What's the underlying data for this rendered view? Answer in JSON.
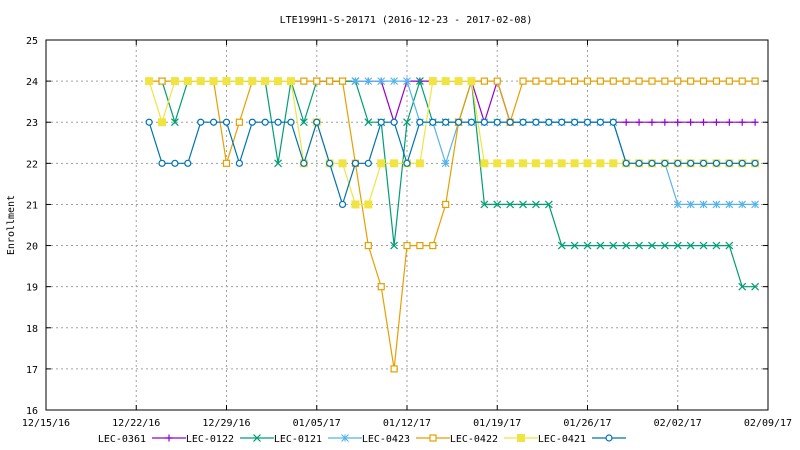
{
  "chart_data": {
    "type": "line",
    "title": "LTE199H1-S-20171 (2016-12-23 - 2017-02-08)",
    "ylabel": "Enrollment",
    "xlabel": "",
    "ylim": [
      16,
      25
    ],
    "yticks": [
      "16",
      "17",
      "18",
      "19",
      "20",
      "21",
      "22",
      "23",
      "24",
      "25"
    ],
    "xlim": [
      "2016-12-15",
      "2017-02-09"
    ],
    "xticks": [
      {
        "date": "2016-12-15",
        "label": "12/15/16"
      },
      {
        "date": "2016-12-22",
        "label": "12/22/16"
      },
      {
        "date": "2016-12-29",
        "label": "12/29/16"
      },
      {
        "date": "2017-01-05",
        "label": "01/05/17"
      },
      {
        "date": "2017-01-12",
        "label": "01/12/17"
      },
      {
        "date": "2017-01-19",
        "label": "01/19/17"
      },
      {
        "date": "2017-01-26",
        "label": "01/26/17"
      },
      {
        "date": "2017-02-02",
        "label": "02/02/17"
      },
      {
        "date": "2017-02-09",
        "label": "02/09/17"
      }
    ],
    "grid": "dashed",
    "legend_position": "bottom",
    "series": [
      {
        "name": "LEC-0361",
        "color": "#9400d3",
        "marker": "plus",
        "points": [
          [
            "2017-01-05",
            24
          ],
          [
            "2017-01-06",
            24
          ],
          [
            "2017-01-07",
            24
          ],
          [
            "2017-01-08",
            24
          ],
          [
            "2017-01-09",
            24
          ],
          [
            "2017-01-10",
            24
          ],
          [
            "2017-01-11",
            23
          ],
          [
            "2017-01-12",
            24
          ],
          [
            "2017-01-13",
            24
          ],
          [
            "2017-01-14",
            24
          ],
          [
            "2017-01-15",
            24
          ],
          [
            "2017-01-16",
            24
          ],
          [
            "2017-01-17",
            24
          ],
          [
            "2017-01-18",
            23
          ],
          [
            "2017-01-19",
            24
          ],
          [
            "2017-01-20",
            23
          ],
          [
            "2017-01-21",
            23
          ],
          [
            "2017-01-22",
            23
          ],
          [
            "2017-01-23",
            23
          ],
          [
            "2017-01-24",
            23
          ],
          [
            "2017-01-25",
            23
          ],
          [
            "2017-01-26",
            23
          ],
          [
            "2017-01-27",
            23
          ],
          [
            "2017-01-28",
            23
          ],
          [
            "2017-01-29",
            23
          ],
          [
            "2017-01-30",
            23
          ],
          [
            "2017-01-31",
            23
          ],
          [
            "2017-02-01",
            23
          ],
          [
            "2017-02-02",
            23
          ],
          [
            "2017-02-03",
            23
          ],
          [
            "2017-02-04",
            23
          ],
          [
            "2017-02-05",
            23
          ],
          [
            "2017-02-06",
            23
          ],
          [
            "2017-02-07",
            23
          ],
          [
            "2017-02-08",
            23
          ]
        ]
      },
      {
        "name": "LEC-0122",
        "color": "#009e73",
        "marker": "x",
        "points": [
          [
            "2016-12-24",
            24
          ],
          [
            "2016-12-25",
            23
          ],
          [
            "2016-12-26",
            24
          ],
          [
            "2016-12-27",
            24
          ],
          [
            "2016-12-28",
            24
          ],
          [
            "2016-12-29",
            24
          ],
          [
            "2016-12-30",
            24
          ],
          [
            "2016-12-31",
            24
          ],
          [
            "2017-01-01",
            24
          ],
          [
            "2017-01-02",
            22
          ],
          [
            "2017-01-03",
            24
          ],
          [
            "2017-01-04",
            23
          ],
          [
            "2017-01-05",
            24
          ],
          [
            "2017-01-06",
            24
          ],
          [
            "2017-01-07",
            24
          ],
          [
            "2017-01-08",
            24
          ],
          [
            "2017-01-09",
            23
          ],
          [
            "2017-01-10",
            23
          ],
          [
            "2017-01-11",
            20
          ],
          [
            "2017-01-12",
            23
          ],
          [
            "2017-01-13",
            24
          ],
          [
            "2017-01-14",
            23
          ],
          [
            "2017-01-15",
            23
          ],
          [
            "2017-01-16",
            23
          ],
          [
            "2017-01-17",
            24
          ],
          [
            "2017-01-18",
            21
          ],
          [
            "2017-01-19",
            21
          ],
          [
            "2017-01-20",
            21
          ],
          [
            "2017-01-21",
            21
          ],
          [
            "2017-01-22",
            21
          ],
          [
            "2017-01-23",
            21
          ],
          [
            "2017-01-24",
            20
          ],
          [
            "2017-01-25",
            20
          ],
          [
            "2017-01-26",
            20
          ],
          [
            "2017-01-27",
            20
          ],
          [
            "2017-01-28",
            20
          ],
          [
            "2017-01-29",
            20
          ],
          [
            "2017-01-30",
            20
          ],
          [
            "2017-01-31",
            20
          ],
          [
            "2017-02-01",
            20
          ],
          [
            "2017-02-02",
            20
          ],
          [
            "2017-02-03",
            20
          ],
          [
            "2017-02-04",
            20
          ],
          [
            "2017-02-05",
            20
          ],
          [
            "2017-02-06",
            20
          ],
          [
            "2017-02-07",
            19
          ],
          [
            "2017-02-08",
            19
          ]
        ]
      },
      {
        "name": "LEC-0121",
        "color": "#56b4e9",
        "marker": "star",
        "points": [
          [
            "2017-01-08",
            24
          ],
          [
            "2017-01-09",
            24
          ],
          [
            "2017-01-10",
            24
          ],
          [
            "2017-01-11",
            24
          ],
          [
            "2017-01-12",
            24
          ],
          [
            "2017-01-13",
            23
          ],
          [
            "2017-01-14",
            23
          ],
          [
            "2017-01-15",
            22
          ],
          [
            "2017-01-16",
            23
          ],
          [
            "2017-01-17",
            23
          ],
          [
            "2017-01-18",
            23
          ],
          [
            "2017-01-19",
            23
          ],
          [
            "2017-01-20",
            23
          ],
          [
            "2017-01-21",
            23
          ],
          [
            "2017-01-22",
            23
          ],
          [
            "2017-01-23",
            23
          ],
          [
            "2017-01-24",
            23
          ],
          [
            "2017-01-25",
            23
          ],
          [
            "2017-01-26",
            23
          ],
          [
            "2017-01-27",
            23
          ],
          [
            "2017-01-28",
            23
          ],
          [
            "2017-01-29",
            22
          ],
          [
            "2017-01-30",
            22
          ],
          [
            "2017-01-31",
            22
          ],
          [
            "2017-02-01",
            22
          ],
          [
            "2017-02-02",
            21
          ],
          [
            "2017-02-03",
            21
          ],
          [
            "2017-02-04",
            21
          ],
          [
            "2017-02-05",
            21
          ],
          [
            "2017-02-06",
            21
          ],
          [
            "2017-02-07",
            21
          ],
          [
            "2017-02-08",
            21
          ]
        ]
      },
      {
        "name": "LEC-0423",
        "color": "#e69f00",
        "marker": "square-open",
        "points": [
          [
            "2016-12-23",
            24
          ],
          [
            "2016-12-24",
            24
          ],
          [
            "2016-12-25",
            24
          ],
          [
            "2016-12-26",
            24
          ],
          [
            "2016-12-27",
            24
          ],
          [
            "2016-12-28",
            24
          ],
          [
            "2016-12-29",
            22
          ],
          [
            "2016-12-30",
            23
          ],
          [
            "2016-12-31",
            24
          ],
          [
            "2017-01-01",
            24
          ],
          [
            "2017-01-02",
            24
          ],
          [
            "2017-01-03",
            24
          ],
          [
            "2017-01-04",
            24
          ],
          [
            "2017-01-05",
            24
          ],
          [
            "2017-01-06",
            24
          ],
          [
            "2017-01-07",
            24
          ],
          [
            "2017-01-08",
            22
          ],
          [
            "2017-01-09",
            20
          ],
          [
            "2017-01-10",
            19
          ],
          [
            "2017-01-11",
            17
          ],
          [
            "2017-01-12",
            20
          ],
          [
            "2017-01-13",
            20
          ],
          [
            "2017-01-14",
            20
          ],
          [
            "2017-01-15",
            21
          ],
          [
            "2017-01-16",
            23
          ],
          [
            "2017-01-17",
            24
          ],
          [
            "2017-01-18",
            24
          ],
          [
            "2017-01-19",
            24
          ],
          [
            "2017-01-20",
            23
          ],
          [
            "2017-01-21",
            24
          ],
          [
            "2017-01-22",
            24
          ],
          [
            "2017-01-23",
            24
          ],
          [
            "2017-01-24",
            24
          ],
          [
            "2017-01-25",
            24
          ],
          [
            "2017-01-26",
            24
          ],
          [
            "2017-01-27",
            24
          ],
          [
            "2017-01-28",
            24
          ],
          [
            "2017-01-29",
            24
          ],
          [
            "2017-01-30",
            24
          ],
          [
            "2017-01-31",
            24
          ],
          [
            "2017-02-01",
            24
          ],
          [
            "2017-02-02",
            24
          ],
          [
            "2017-02-03",
            24
          ],
          [
            "2017-02-04",
            24
          ],
          [
            "2017-02-05",
            24
          ],
          [
            "2017-02-06",
            24
          ],
          [
            "2017-02-07",
            24
          ],
          [
            "2017-02-08",
            24
          ]
        ]
      },
      {
        "name": "LEC-0422",
        "color": "#f0e442",
        "marker": "square-filled",
        "points": [
          [
            "2016-12-23",
            24
          ],
          [
            "2016-12-24",
            23
          ],
          [
            "2016-12-25",
            24
          ],
          [
            "2016-12-26",
            24
          ],
          [
            "2016-12-27",
            24
          ],
          [
            "2016-12-28",
            24
          ],
          [
            "2016-12-29",
            24
          ],
          [
            "2016-12-30",
            24
          ],
          [
            "2016-12-31",
            24
          ],
          [
            "2017-01-01",
            24
          ],
          [
            "2017-01-02",
            24
          ],
          [
            "2017-01-03",
            24
          ],
          [
            "2017-01-04",
            22
          ],
          [
            "2017-01-05",
            23
          ],
          [
            "2017-01-06",
            22
          ],
          [
            "2017-01-07",
            22
          ],
          [
            "2017-01-08",
            21
          ],
          [
            "2017-01-09",
            21
          ],
          [
            "2017-01-10",
            22
          ],
          [
            "2017-01-11",
            22
          ],
          [
            "2017-01-12",
            22
          ],
          [
            "2017-01-13",
            22
          ],
          [
            "2017-01-14",
            24
          ],
          [
            "2017-01-15",
            24
          ],
          [
            "2017-01-16",
            24
          ],
          [
            "2017-01-17",
            24
          ],
          [
            "2017-01-18",
            22
          ],
          [
            "2017-01-19",
            22
          ],
          [
            "2017-01-20",
            22
          ],
          [
            "2017-01-21",
            22
          ],
          [
            "2017-01-22",
            22
          ],
          [
            "2017-01-23",
            22
          ],
          [
            "2017-01-24",
            22
          ],
          [
            "2017-01-25",
            22
          ],
          [
            "2017-01-26",
            22
          ],
          [
            "2017-01-27",
            22
          ],
          [
            "2017-01-28",
            22
          ],
          [
            "2017-01-29",
            22
          ],
          [
            "2017-01-30",
            22
          ],
          [
            "2017-01-31",
            22
          ],
          [
            "2017-02-01",
            22
          ],
          [
            "2017-02-02",
            22
          ],
          [
            "2017-02-03",
            22
          ],
          [
            "2017-02-04",
            22
          ],
          [
            "2017-02-05",
            22
          ],
          [
            "2017-02-06",
            22
          ],
          [
            "2017-02-07",
            22
          ],
          [
            "2017-02-08",
            22
          ]
        ]
      },
      {
        "name": "LEC-0421",
        "color": "#0072b2",
        "marker": "circle-open",
        "points": [
          [
            "2016-12-23",
            23
          ],
          [
            "2016-12-24",
            22
          ],
          [
            "2016-12-25",
            22
          ],
          [
            "2016-12-26",
            22
          ],
          [
            "2016-12-27",
            23
          ],
          [
            "2016-12-28",
            23
          ],
          [
            "2016-12-29",
            23
          ],
          [
            "2016-12-30",
            22
          ],
          [
            "2016-12-31",
            23
          ],
          [
            "2017-01-01",
            23
          ],
          [
            "2017-01-02",
            23
          ],
          [
            "2017-01-03",
            23
          ],
          [
            "2017-01-04",
            22
          ],
          [
            "2017-01-05",
            23
          ],
          [
            "2017-01-06",
            22
          ],
          [
            "2017-01-07",
            21
          ],
          [
            "2017-01-08",
            22
          ],
          [
            "2017-01-09",
            22
          ],
          [
            "2017-01-10",
            23
          ],
          [
            "2017-01-11",
            23
          ],
          [
            "2017-01-12",
            22
          ],
          [
            "2017-01-13",
            23
          ],
          [
            "2017-01-14",
            23
          ],
          [
            "2017-01-15",
            23
          ],
          [
            "2017-01-16",
            23
          ],
          [
            "2017-01-17",
            23
          ],
          [
            "2017-01-18",
            23
          ],
          [
            "2017-01-19",
            23
          ],
          [
            "2017-01-20",
            23
          ],
          [
            "2017-01-21",
            23
          ],
          [
            "2017-01-22",
            23
          ],
          [
            "2017-01-23",
            23
          ],
          [
            "2017-01-24",
            23
          ],
          [
            "2017-01-25",
            23
          ],
          [
            "2017-01-26",
            23
          ],
          [
            "2017-01-27",
            23
          ],
          [
            "2017-01-28",
            23
          ],
          [
            "2017-01-29",
            22
          ],
          [
            "2017-01-30",
            22
          ],
          [
            "2017-01-31",
            22
          ],
          [
            "2017-02-01",
            22
          ],
          [
            "2017-02-02",
            22
          ],
          [
            "2017-02-03",
            22
          ],
          [
            "2017-02-04",
            22
          ],
          [
            "2017-02-05",
            22
          ],
          [
            "2017-02-06",
            22
          ],
          [
            "2017-02-07",
            22
          ],
          [
            "2017-02-08",
            22
          ]
        ]
      }
    ]
  }
}
